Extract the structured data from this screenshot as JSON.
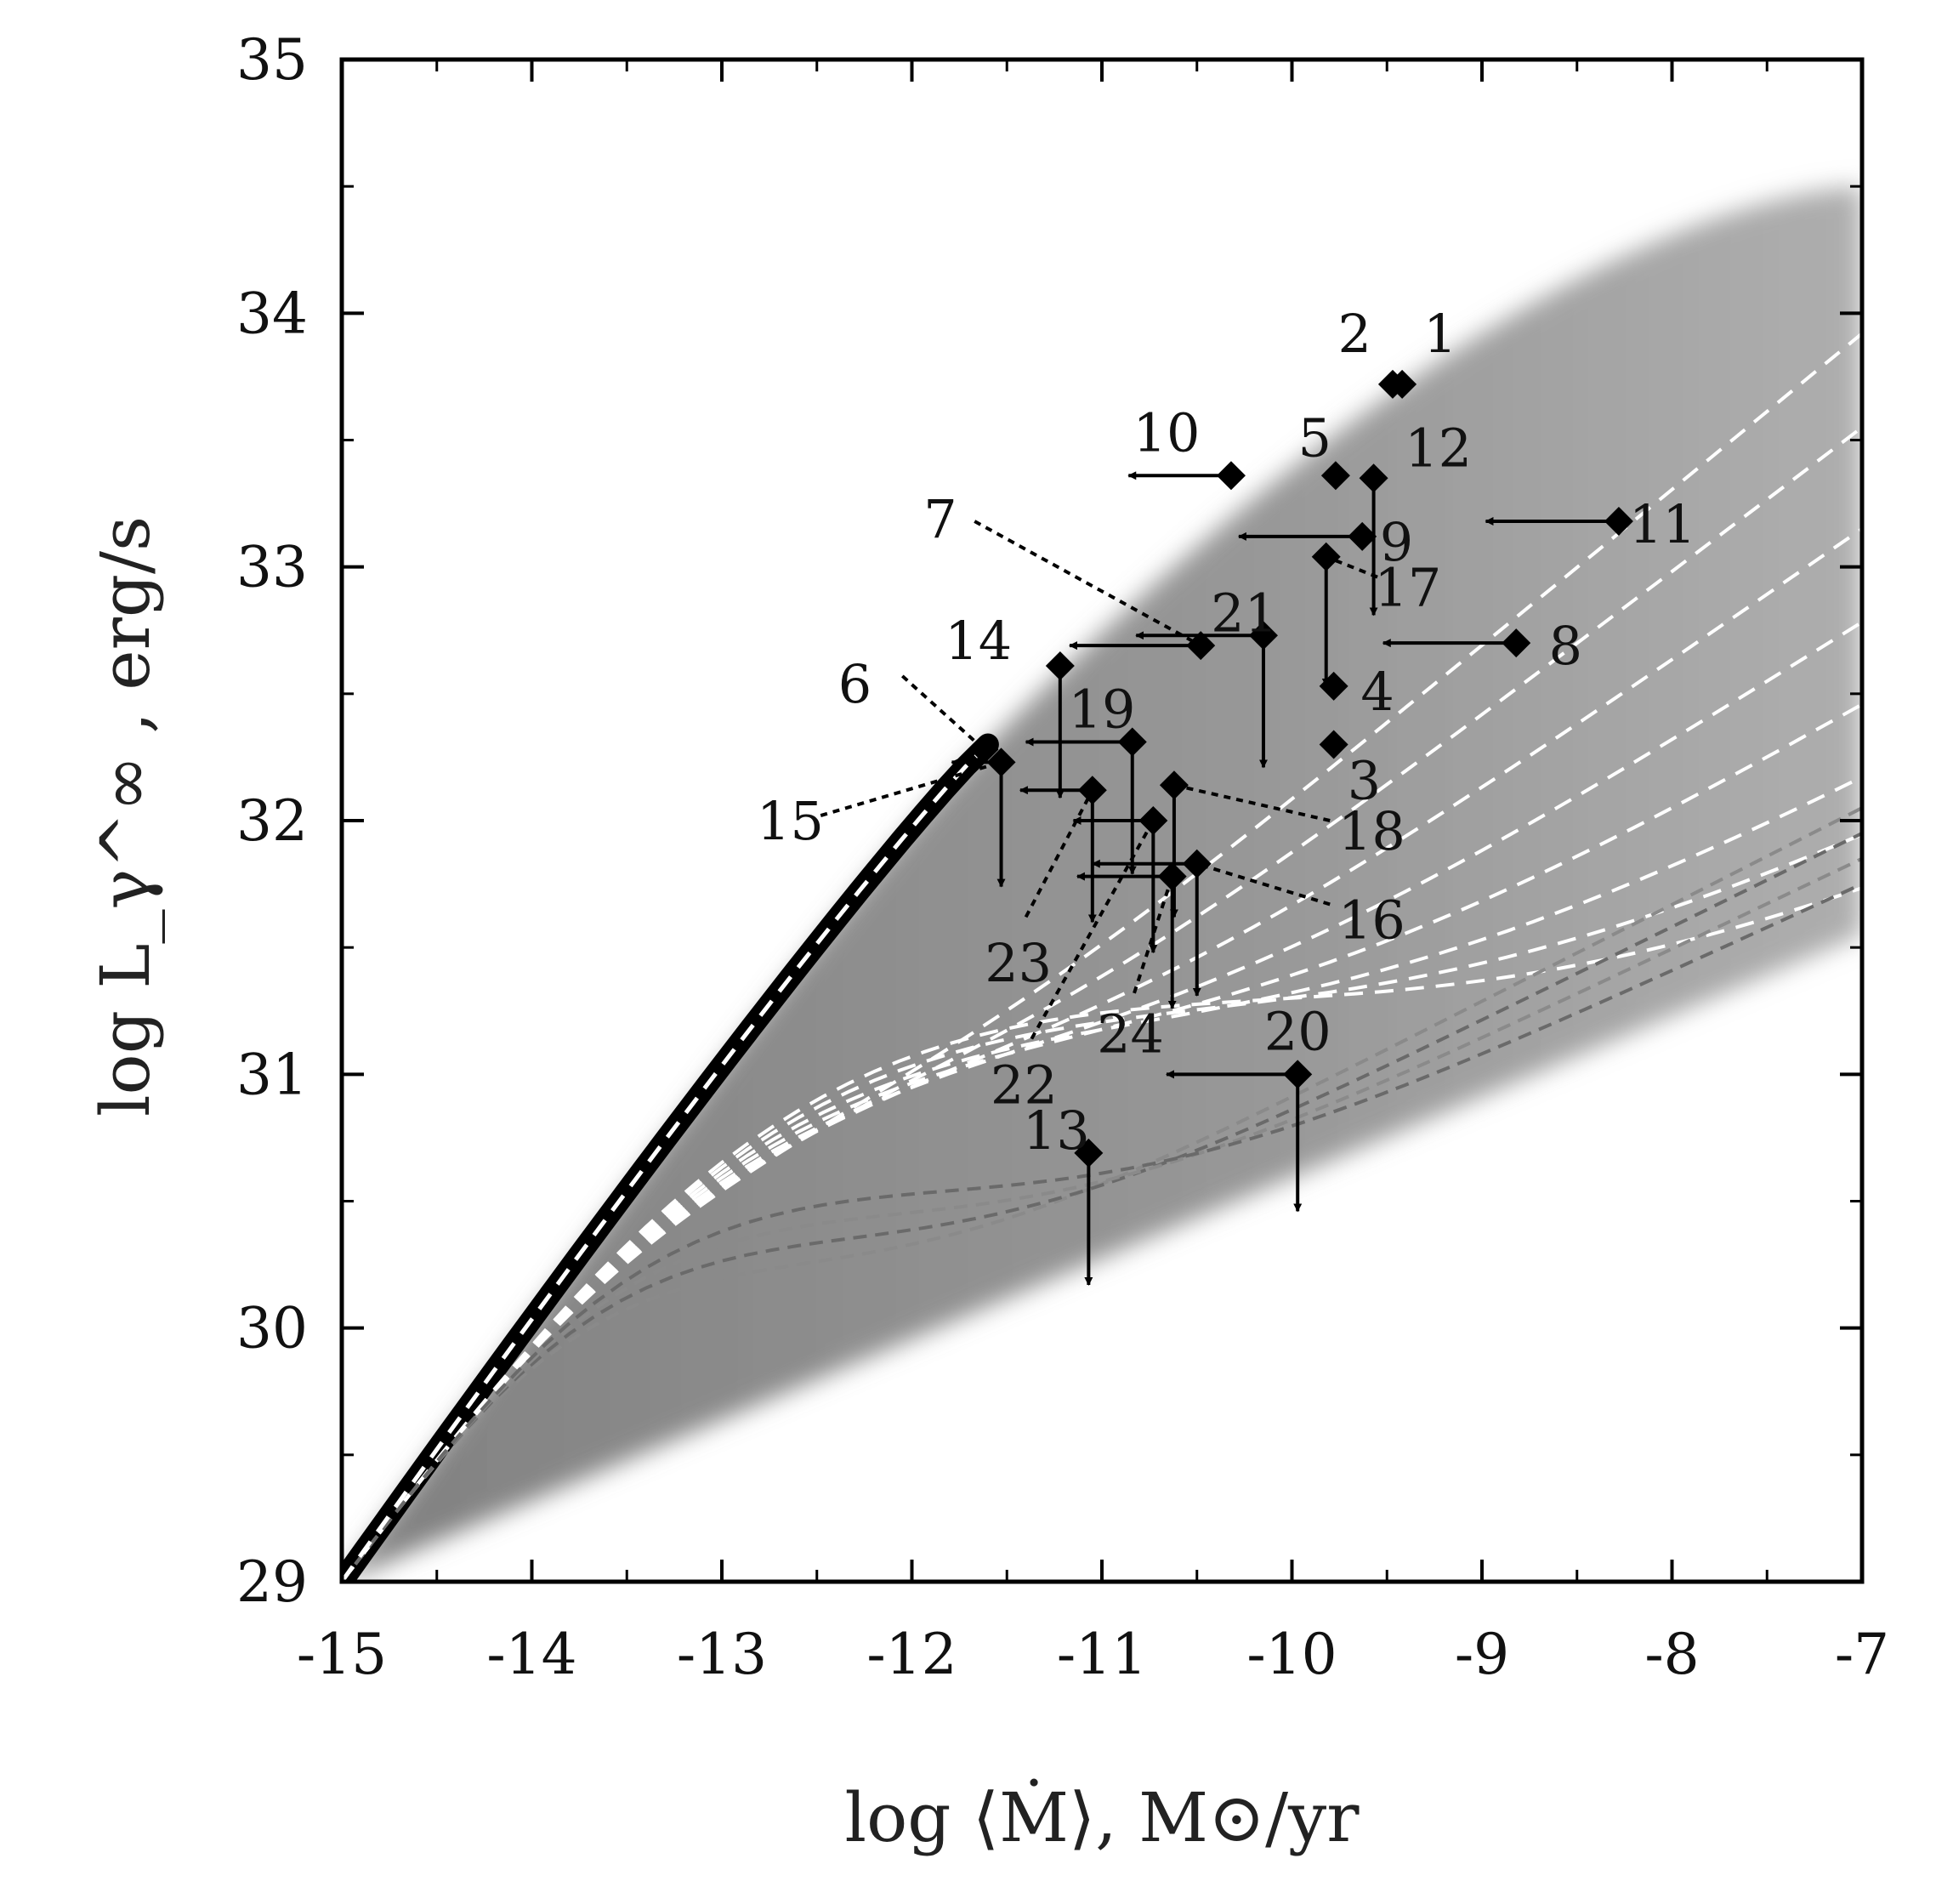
{
  "chart_data": {
    "type": "scatter",
    "title": "",
    "xlabel": "log ⟨Ṁ⟩, M⊙/yr",
    "ylabel": "log L_γ^∞ , erg/s",
    "xlim": [
      -15,
      -7
    ],
    "ylim": [
      29,
      35
    ],
    "xticks": [
      -15,
      -14,
      -13,
      -12,
      -11,
      -10,
      -9,
      -8,
      -7
    ],
    "yticks": [
      29,
      30,
      31,
      32,
      33,
      34,
      35
    ],
    "grid": false,
    "legend": "none",
    "colors": {
      "points": "#000000",
      "white_curves": "#ffffff",
      "grey_curves": "#8a8a8a",
      "band": "#9a9a9a"
    },
    "points": [
      {
        "id": "1",
        "x": -9.42,
        "y": 33.72,
        "label_x": -9.22,
        "label_y": 33.92
      },
      {
        "id": "2",
        "x": -9.47,
        "y": 33.72,
        "label_x": -9.67,
        "label_y": 33.92
      },
      {
        "id": "3",
        "x": -9.78,
        "y": 32.3,
        "label_x": -9.62,
        "label_y": 32.16
      },
      {
        "id": "4",
        "x": -9.78,
        "y": 32.53,
        "label_x": -9.55,
        "label_y": 32.51,
        "up_x": "down",
        "arrow_to_y": 32.53
      },
      {
        "id": "5",
        "x": -9.77,
        "y": 33.36,
        "label_x": -9.88,
        "label_y": 33.51
      },
      {
        "id": "6",
        "x": -11.62,
        "y": 32.28,
        "label_x": -12.3,
        "label_y": 32.54,
        "pointer_from_x": -12.05,
        "pointer_from_y": 32.57
      },
      {
        "id": "7",
        "x": -10.48,
        "y": 32.69,
        "label_x": -11.85,
        "label_y": 33.19,
        "pointer_from_x": -11.67,
        "pointer_from_y": 33.18
      },
      {
        "id": "8",
        "x": -8.82,
        "y": 32.7,
        "label_x": -8.56,
        "label_y": 32.69,
        "arrow_left_to": -9.52
      },
      {
        "id": "9",
        "x": -9.63,
        "y": 33.12,
        "label_x": -9.45,
        "label_y": 33.1,
        "arrow_left_to": -10.28
      },
      {
        "id": "10",
        "x": -10.32,
        "y": 33.36,
        "label_x": -10.66,
        "label_y": 33.53,
        "arrow_left_to": -10.86
      },
      {
        "id": "11",
        "x": -8.28,
        "y": 33.18,
        "label_x": -8.05,
        "label_y": 33.17,
        "arrow_left_to": -8.98
      },
      {
        "id": "12",
        "x": -9.57,
        "y": 33.35,
        "label_x": -9.23,
        "label_y": 33.47,
        "arrow_down_to": 32.81
      },
      {
        "id": "13",
        "x": -11.07,
        "y": 30.69,
        "label_x": -11.24,
        "label_y": 30.78,
        "arrow_down_to": 30.17
      },
      {
        "id": "14",
        "x": -11.22,
        "y": 32.61,
        "label_x": -11.65,
        "label_y": 32.71,
        "arrow_down_to": 32.09
      },
      {
        "id": "15",
        "x": -11.53,
        "y": 32.23,
        "label_x": -12.64,
        "label_y": 32.0,
        "pointer_from_x": -12.48,
        "pointer_from_y": 32.02,
        "arrow_left_to": -11.79,
        "arrow_down_to": 31.74
      },
      {
        "id": "16",
        "x": -10.5,
        "y": 31.83,
        "label_x": -9.58,
        "label_y": 31.61,
        "pointer_from_x": -9.8,
        "pointer_from_y": 31.67
      },
      {
        "id": "17",
        "x": -9.82,
        "y": 33.04,
        "label_x": -9.39,
        "label_y": 32.92,
        "pointer_from_x": -9.55,
        "pointer_from_y": 32.96,
        "arrow_down_to": 32.53
      },
      {
        "id": "18",
        "x": -10.62,
        "y": 32.14,
        "label_x": -9.58,
        "label_y": 31.96,
        "pointer_from_x": -9.8,
        "pointer_from_y": 32.0
      },
      {
        "id": "19",
        "x": -10.84,
        "y": 32.31,
        "label_x": -11.0,
        "label_y": 32.44,
        "arrow_down_to": 31.79
      },
      {
        "id": "20",
        "x": -9.97,
        "y": 31.0,
        "label_x": -9.97,
        "label_y": 31.17,
        "arrow_left_to": -10.66,
        "arrow_down_to": 30.46
      },
      {
        "id": "21",
        "x": -10.15,
        "y": 32.73,
        "label_x": -10.25,
        "label_y": 32.82,
        "arrow_left_to": -10.82,
        "arrow_down_to": 32.21
      },
      {
        "id": "22",
        "x": -10.73,
        "y": 32.0,
        "label_x": -11.41,
        "label_y": 30.96,
        "pointer_from_x": -11.37,
        "pointer_from_y": 31.14,
        "arrow_down_to": 31.48
      },
      {
        "id": "23",
        "x": -11.05,
        "y": 32.12,
        "label_x": -11.44,
        "label_y": 31.44,
        "pointer_from_x": -11.4,
        "pointer_from_y": 31.62,
        "arrow_down_to": 31.6
      },
      {
        "id": "24",
        "x": -10.63,
        "y": 31.78,
        "label_x": -10.85,
        "label_y": 31.16,
        "pointer_from_x": -10.83,
        "pointer_from_y": 31.32,
        "arrow_down_to": 31.26
      }
    ],
    "extra_arrows": [
      {
        "from_x": -11.07,
        "from_y": 32.12,
        "left_to": -11.43
      },
      {
        "from_x": -10.73,
        "from_y": 32.0,
        "left_to": -11.15
      },
      {
        "from_x": -10.63,
        "from_y": 31.78,
        "left_to": -11.13
      },
      {
        "from_x": -10.5,
        "from_y": 31.83,
        "left_to": -11.05
      },
      {
        "from_x": -10.82,
        "from_y": 32.31,
        "left_to": -11.4
      },
      {
        "from_x": -10.48,
        "from_y": 32.69,
        "left_to": -11.17
      },
      {
        "from_x": -10.5,
        "from_y": 31.83,
        "down_to": 31.31
      },
      {
        "from_x": -10.62,
        "from_y": 32.14,
        "down_to": 31.62
      }
    ],
    "curves": {
      "rise_start": [
        -15,
        29
      ],
      "rise_knee": [
        -11.6,
        32.3
      ],
      "white_end_y": [
        33.92,
        33.55,
        33.15,
        32.78,
        32.45,
        32.15,
        31.9,
        31.65
      ],
      "grey_end_y": [
        32.05,
        31.95,
        31.85,
        31.75
      ],
      "band_upper_end_y": 34.5,
      "band_lower_end_y": 31.55
    }
  }
}
